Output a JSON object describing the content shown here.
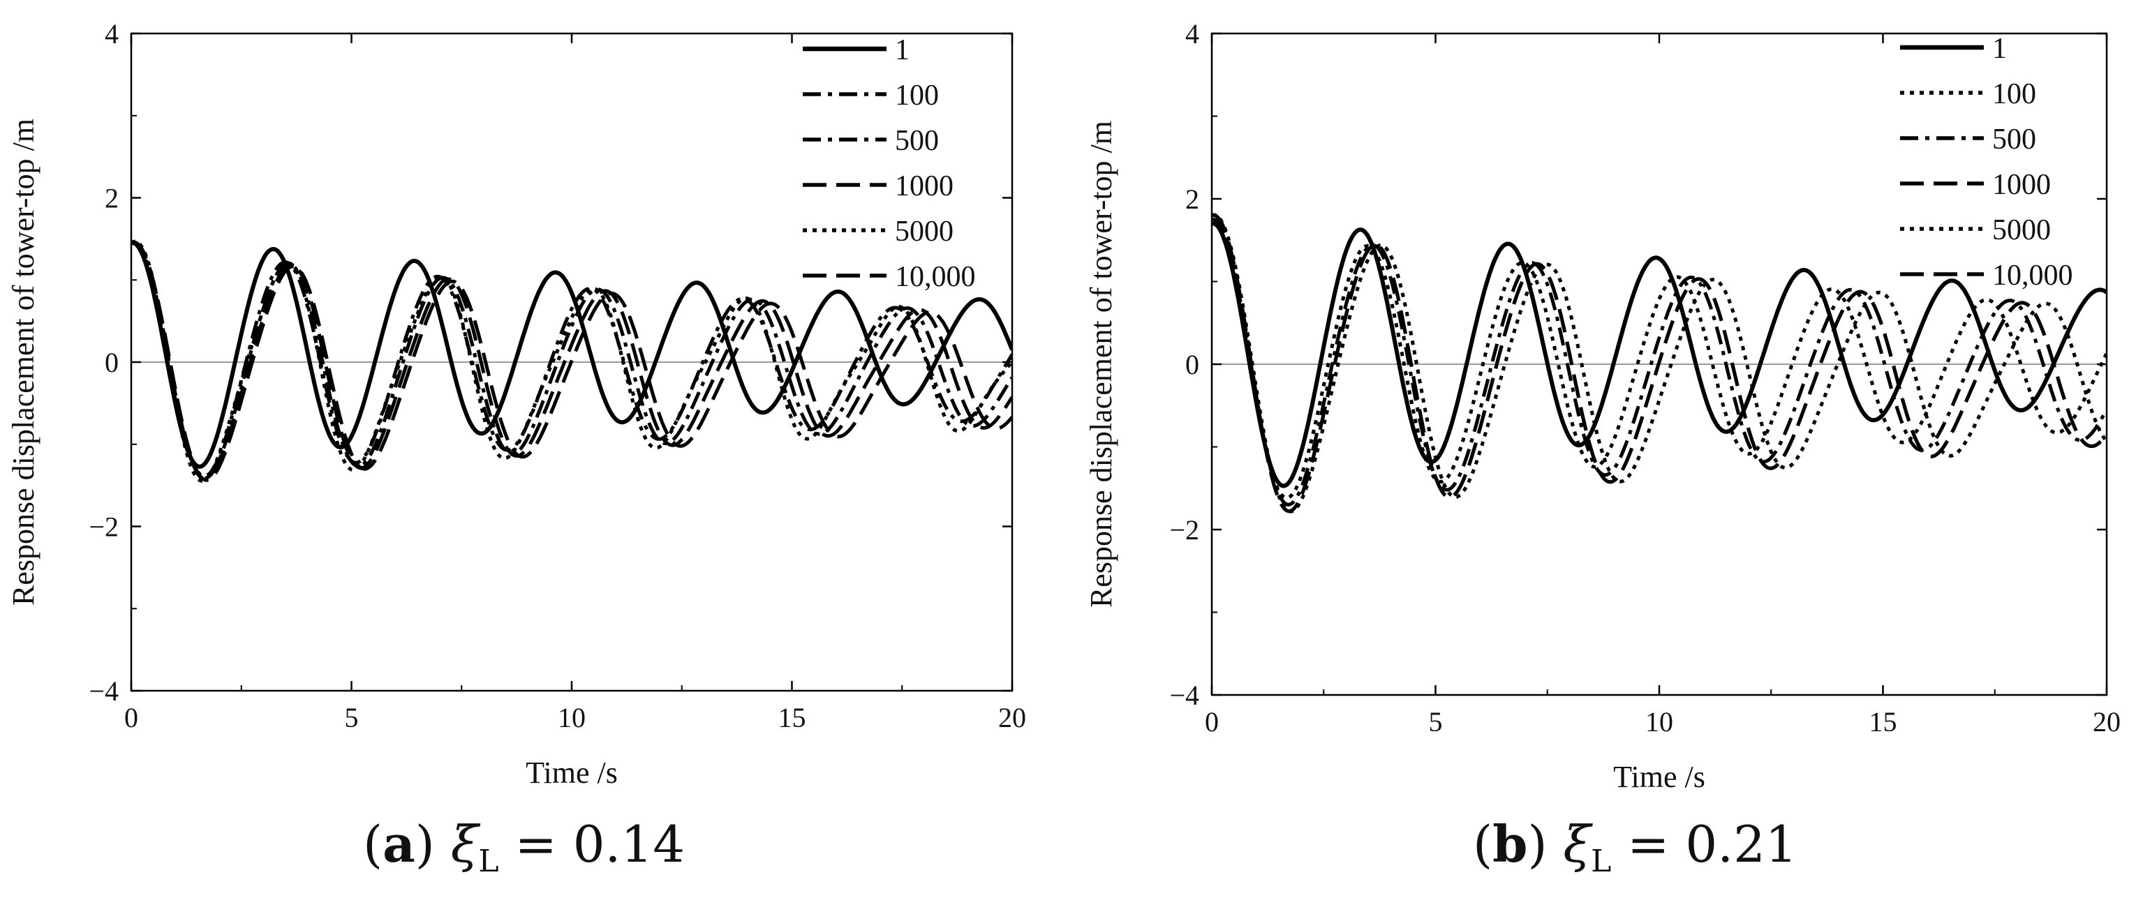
{
  "styles": {
    "line_color": "#000000",
    "zero_line_color": "#9a9a9a"
  },
  "captions": [
    {
      "letter": "a",
      "xi": "ξ",
      "sub": "L",
      "rest": " = 0.14"
    },
    {
      "letter": "b",
      "xi": "ξ",
      "sub": "L",
      "rest": " = 0.21"
    }
  ],
  "chart_data": [
    {
      "type": "line",
      "panel": "a",
      "xlabel": "Time /s",
      "ylabel": "Response displacement of tower-top /m",
      "xlim": [
        0,
        20
      ],
      "ylim": [
        -4,
        4
      ],
      "xticks": [
        "0",
        "5",
        "10",
        "15",
        "20"
      ],
      "yticks": [
        "4",
        "2",
        "0",
        "−2",
        "−4"
      ],
      "legend_position": "top-right",
      "series": [
        {
          "name": "1",
          "style": "solid",
          "amp0": 1.45,
          "period": 3.2,
          "decay": 0.045,
          "bias": 0.15,
          "x0": 0.04
        },
        {
          "name": "100",
          "style": "dashdot",
          "amp0": 1.45,
          "period": 3.45,
          "decay": 0.042,
          "bias": -0.05,
          "x0": 0.07
        },
        {
          "name": "500",
          "style": "dashdot",
          "amp0": 1.45,
          "period": 3.5,
          "decay": 0.04,
          "bias": -0.08,
          "x0": 0.09
        },
        {
          "name": "1000",
          "style": "dash",
          "amp0": 1.45,
          "period": 3.55,
          "decay": 0.04,
          "bias": -0.1,
          "x0": 0.11
        },
        {
          "name": "5000",
          "style": "dot",
          "amp0": 1.45,
          "period": 3.45,
          "decay": 0.04,
          "bias": -0.1,
          "x0": 0.15
        },
        {
          "name": "10,000",
          "style": "dash",
          "amp0": 1.45,
          "period": 3.6,
          "decay": 0.04,
          "bias": -0.12,
          "x0": 0.1
        }
      ]
    },
    {
      "type": "line",
      "panel": "b",
      "xlabel": "Time /s",
      "ylabel": "Response displacement of tower-top /m",
      "xlim": [
        0,
        20
      ],
      "ylim": [
        -4,
        4
      ],
      "xticks": [
        "0",
        "5",
        "10",
        "15",
        "20"
      ],
      "yticks": [
        "4",
        "2",
        "0",
        "−2",
        "−4"
      ],
      "legend_position": "top-right",
      "series": [
        {
          "name": "1",
          "style": "solid",
          "amp0": 1.7,
          "period": 3.3,
          "decay": 0.045,
          "bias": 0.2,
          "x0": 0.04
        },
        {
          "name": "100",
          "style": "dot",
          "amp0": 1.7,
          "period": 3.45,
          "decay": 0.042,
          "bias": -0.05,
          "x0": 0.06
        },
        {
          "name": "500",
          "style": "dashdot",
          "amp0": 1.75,
          "period": 3.55,
          "decay": 0.04,
          "bias": -0.1,
          "x0": 0.08
        },
        {
          "name": "1000",
          "style": "dash",
          "amp0": 1.8,
          "period": 3.6,
          "decay": 0.04,
          "bias": -0.15,
          "x0": 0.1
        },
        {
          "name": "5000",
          "style": "dot",
          "amp0": 1.8,
          "period": 3.7,
          "decay": 0.04,
          "bias": -0.15,
          "x0": 0.12
        },
        {
          "name": "10,000",
          "style": "dash",
          "amp0": 1.8,
          "period": 3.6,
          "decay": 0.04,
          "bias": -0.15,
          "x0": 0.1
        }
      ]
    }
  ]
}
